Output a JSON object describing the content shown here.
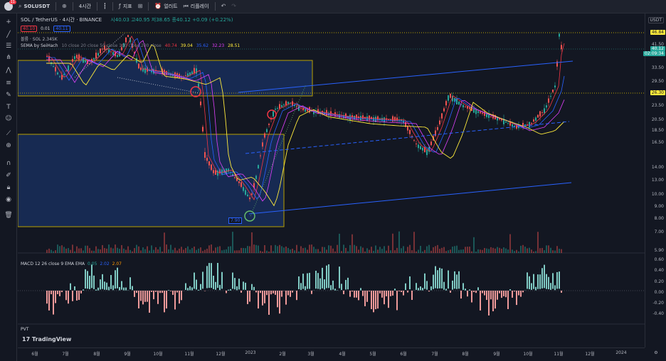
{
  "topbar": {
    "avatar_badge": "11",
    "symbol": "SOLUSDT",
    "interval": "4시간",
    "indicators_label": "지표",
    "alert_label": "얼러트",
    "replay_label": "리플레이",
    "quote_currency": "USDT"
  },
  "legend": {
    "title": "SOL / TetherUS · 4시간 · BINANCE",
    "ohlc": "시40.03 고40.95 저38.65 종40.12 +0.09 (+0.22%)",
    "sell_price": "40.10",
    "spread": "0.01",
    "buy_price": "40.11",
    "volume": "볼륨 · SOL  2.345K",
    "ema_label": "5EMA by SeiHach",
    "ema_params": "10 close 20 close 50 close 100 close 200 close",
    "ema_values": [
      "40.74",
      "39.04",
      "35.62",
      "32.23",
      "28.51"
    ],
    "macd_label": "MACD 12 26 close 9 EMA EMA",
    "macd_values": [
      "0.05",
      "2.02",
      "2.07"
    ],
    "pvt_label": "PVT"
  },
  "colors": {
    "ema10": "#f23645",
    "ema20": "#ffeb3b",
    "ema50": "#2962ff",
    "ema100": "#e040fb",
    "ema200": "#ffeb3b",
    "candle_up": "#26a69a",
    "candle_down": "#ef5350",
    "zone_fill": "#1c3a7a",
    "channel": "#2962ff",
    "price_tag": "#26a69a"
  },
  "price_axis": {
    "labels": [
      "46.84",
      "41.50",
      "33.50",
      "29.50",
      "26.30",
      "23.50",
      "20.50",
      "18.50",
      "16.50",
      "14.00",
      "13.00",
      "11.50",
      "10.00",
      "9.00",
      "8.00",
      "7.00",
      "5.90"
    ],
    "current_price": "40.12",
    "countdown": "02:09:34",
    "high_tag": "46.84",
    "level_tag": "26.30",
    "low_marker": "7.90",
    "macd_labels": [
      "0.60",
      "0.40",
      "0.20",
      "0.00",
      "-0.20",
      "-0.40"
    ]
  },
  "time_axis": {
    "labels": [
      "6월",
      "7월",
      "8월",
      "9월",
      "10월",
      "11월",
      "12월",
      "2023",
      "2월",
      "3월",
      "4월",
      "5월",
      "6월",
      "7월",
      "8월",
      "9월",
      "10월",
      "11월",
      "12월",
      "2024"
    ]
  },
  "branding": {
    "logo_text": "TradingView"
  }
}
